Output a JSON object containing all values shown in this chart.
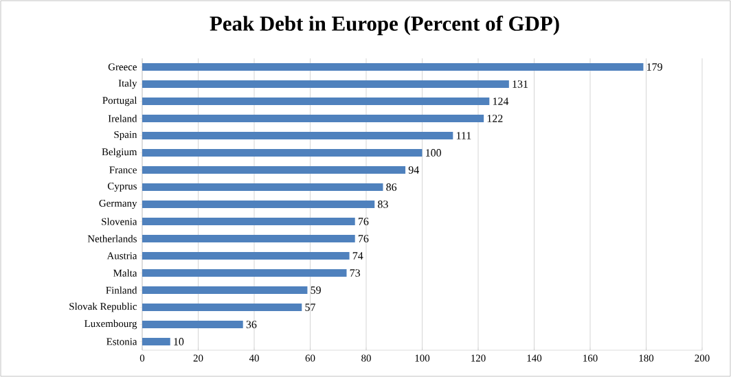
{
  "chart_data": {
    "type": "bar",
    "orientation": "horizontal",
    "title": "Peak Debt in Europe (Percent of GDP)",
    "categories": [
      "Greece",
      "Italy",
      "Portugal",
      "Ireland",
      "Spain",
      "Belgium",
      "France",
      "Cyprus",
      "Germany",
      "Slovenia",
      "Netherlands",
      "Austria",
      "Malta",
      "Finland",
      "Slovak Republic",
      "Luxembourg",
      "Estonia"
    ],
    "values": [
      179,
      131,
      124,
      122,
      111,
      100,
      94,
      86,
      83,
      76,
      76,
      74,
      73,
      59,
      57,
      36,
      10
    ],
    "color": "#4f81bd",
    "xlim": [
      0,
      200
    ],
    "xticks": [
      0,
      20,
      40,
      60,
      80,
      100,
      120,
      140,
      160,
      180,
      200
    ],
    "grid": "x",
    "data_labels": true
  }
}
